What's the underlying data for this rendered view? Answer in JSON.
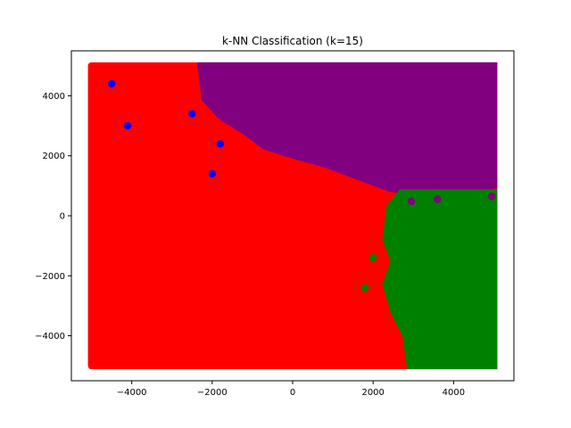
{
  "chart_data": {
    "type": "scatter",
    "title": "k-NN Classification (k=15)",
    "xlabel": "",
    "ylabel": "",
    "xlim": [
      -5500,
      5500
    ],
    "ylim": [
      -5500,
      5500
    ],
    "x_ticks": [
      -4000,
      -2000,
      0,
      2000,
      4000
    ],
    "y_ticks": [
      -4000,
      -2000,
      0,
      2000,
      4000
    ],
    "x_tick_labels": [
      "−4000",
      "−2000",
      "0",
      "2000",
      "4000"
    ],
    "y_tick_labels": [
      "−4000",
      "−2000",
      "0",
      "2000",
      "4000"
    ],
    "grid": false,
    "legend": "none",
    "background_grid_range": [
      -5000,
      5000
    ],
    "regions": [
      {
        "class": "red",
        "color": "#ff0000"
      },
      {
        "class": "purple",
        "color": "#800080"
      },
      {
        "class": "green",
        "color": "#008000"
      }
    ],
    "purple_region_lower_boundary": [
      [
        -2300,
        5000
      ],
      [
        -2200,
        3900
      ],
      [
        -1800,
        3300
      ],
      [
        -1200,
        2800
      ],
      [
        -700,
        2300
      ],
      [
        0,
        2000
      ],
      [
        800,
        1700
      ],
      [
        1600,
        1300
      ],
      [
        2400,
        900
      ],
      [
        3200,
        700
      ],
      [
        4000,
        800
      ],
      [
        4700,
        900
      ],
      [
        5000,
        1000
      ]
    ],
    "green_region_left_boundary": [
      [
        2700,
        800
      ],
      [
        2400,
        300
      ],
      [
        2300,
        -800
      ],
      [
        2500,
        -1500
      ],
      [
        2300,
        -2300
      ],
      [
        2500,
        -3200
      ],
      [
        2800,
        -4000
      ],
      [
        2900,
        -5000
      ]
    ],
    "points": [
      {
        "x": -4500,
        "y": 4400,
        "class": "blue",
        "color": "#0000ff"
      },
      {
        "x": -4100,
        "y": 3000,
        "class": "blue",
        "color": "#0000ff"
      },
      {
        "x": -2500,
        "y": 3400,
        "class": "blue",
        "color": "#0000ff"
      },
      {
        "x": -1800,
        "y": 2400,
        "class": "blue",
        "color": "#0000ff"
      },
      {
        "x": -2000,
        "y": 1400,
        "class": "blue",
        "color": "#0000ff"
      },
      {
        "x": 2950,
        "y": 480,
        "class": "purple",
        "color": "#800080"
      },
      {
        "x": 3600,
        "y": 550,
        "class": "purple",
        "color": "#800080"
      },
      {
        "x": 4950,
        "y": 650,
        "class": "purple",
        "color": "#800080"
      },
      {
        "x": 2000,
        "y": -1400,
        "class": "green",
        "color": "#008000"
      },
      {
        "x": 1800,
        "y": -2400,
        "class": "green",
        "color": "#008000"
      }
    ]
  }
}
